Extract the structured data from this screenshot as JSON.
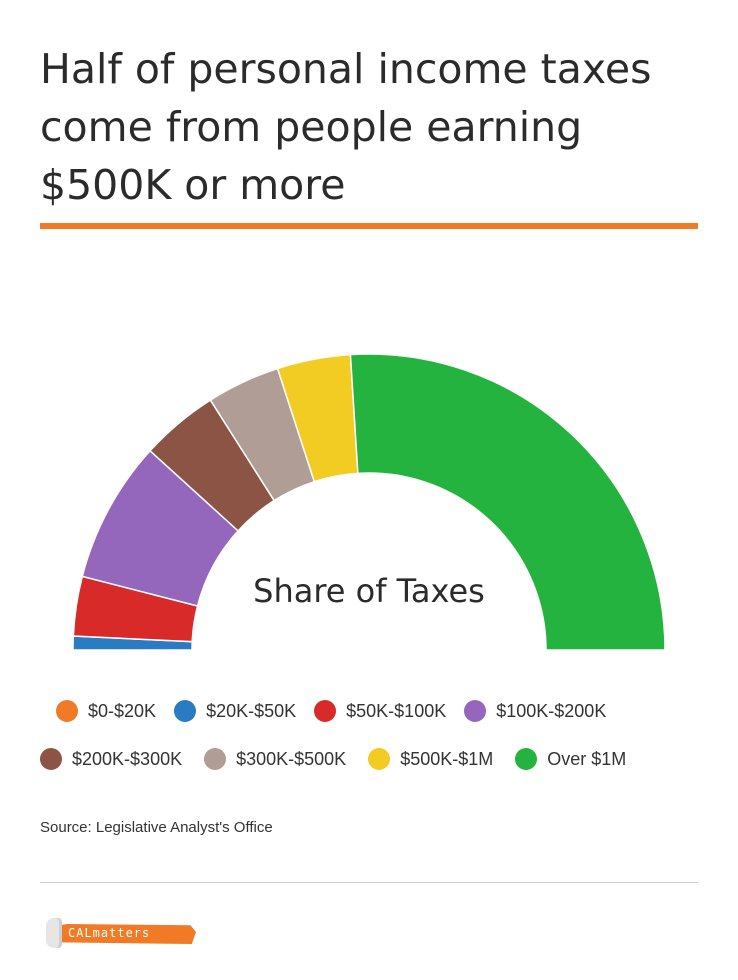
{
  "header": {
    "title": "Half of personal income taxes come from people earning $500K or more"
  },
  "chart_data": {
    "type": "pie",
    "subtype": "half-donut",
    "center_label": "Share of Taxes",
    "unit": "percent of personal income taxes",
    "legend_placement": "bottom",
    "categories": [
      "$0-$20K",
      "$20K-$50K",
      "$50K-$100K",
      "$100K-$200K",
      "$200K-$300K",
      "$300K-$500K",
      "$500K-$1M",
      "Over $1M"
    ],
    "values": [
      0,
      1.5,
      6.5,
      15.5,
      8.5,
      8,
      8,
      52
    ],
    "colors": [
      "#f07a26",
      "#2a7bc2",
      "#d92a2a",
      "#9467bd",
      "#8b5445",
      "#b09d95",
      "#f2cc23",
      "#25b33f"
    ]
  },
  "source": "Source: Legislative Analyst's Office",
  "logo": {
    "text": "CALmatters"
  }
}
